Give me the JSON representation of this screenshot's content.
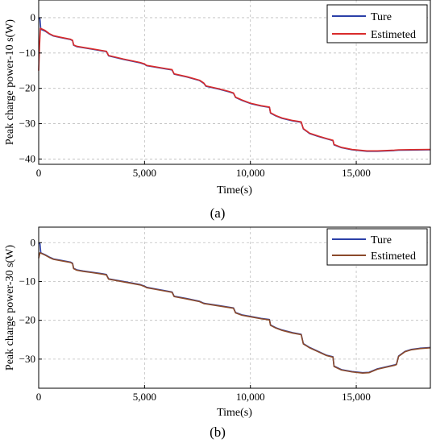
{
  "chart_data": [
    {
      "type": "line",
      "panel_label": "(a)",
      "xlabel": "Time(s)",
      "ylabel": "Peak charge power-10 s(W)",
      "xlim": [
        0,
        18500
      ],
      "ylim": [
        -41.5,
        5
      ],
      "xticks": [
        0,
        5000,
        10000,
        15000
      ],
      "xtick_labels": [
        "0",
        "5,000",
        "10,000",
        "15,000"
      ],
      "yticks": [
        0,
        -10,
        -20,
        -30,
        -40
      ],
      "ytick_labels": [
        "0",
        "−10",
        "−20",
        "−30",
        "−40"
      ],
      "grid": true,
      "legend_position": "top-right",
      "series": [
        {
          "name": "Ture",
          "color": "#2b3fa8",
          "points": [
            [
              0,
              0
            ],
            [
              60,
              -0.4
            ],
            [
              100,
              -3.3
            ],
            [
              300,
              -3.8
            ],
            [
              500,
              -4.6
            ],
            [
              700,
              -5.2
            ],
            [
              1000,
              -5.6
            ],
            [
              1500,
              -6.2
            ],
            [
              1600,
              -6.5
            ],
            [
              1650,
              -7.8
            ],
            [
              1800,
              -8.2
            ],
            [
              2100,
              -8.5
            ],
            [
              2500,
              -8.9
            ],
            [
              3000,
              -9.4
            ],
            [
              3200,
              -9.6
            ],
            [
              3300,
              -10.8
            ],
            [
              4000,
              -11.8
            ],
            [
              4800,
              -12.8
            ],
            [
              5000,
              -13.2
            ],
            [
              5100,
              -13.6
            ],
            [
              5500,
              -14.0
            ],
            [
              6000,
              -14.5
            ],
            [
              6300,
              -14.8
            ],
            [
              6400,
              -16.0
            ],
            [
              7000,
              -16.8
            ],
            [
              7600,
              -17.8
            ],
            [
              7800,
              -18.6
            ],
            [
              7900,
              -19.4
            ],
            [
              8500,
              -20.2
            ],
            [
              9000,
              -21.0
            ],
            [
              9200,
              -21.4
            ],
            [
              9300,
              -22.6
            ],
            [
              9600,
              -23.4
            ],
            [
              10000,
              -24.3
            ],
            [
              10500,
              -25.0
            ],
            [
              10900,
              -25.4
            ],
            [
              10950,
              -27.0
            ],
            [
              11200,
              -27.8
            ],
            [
              11500,
              -28.5
            ],
            [
              12000,
              -29.2
            ],
            [
              12400,
              -29.6
            ],
            [
              12500,
              -31.5
            ],
            [
              12800,
              -32.8
            ],
            [
              13200,
              -33.6
            ],
            [
              13600,
              -34.3
            ],
            [
              13900,
              -34.8
            ],
            [
              13950,
              -36.0
            ],
            [
              14300,
              -36.8
            ],
            [
              14800,
              -37.4
            ],
            [
              15500,
              -37.8
            ],
            [
              16000,
              -37.8
            ],
            [
              16800,
              -37.6
            ],
            [
              17000,
              -37.5
            ],
            [
              18500,
              -37.4
            ]
          ]
        },
        {
          "name": "Estimeted",
          "color": "#d92b2b",
          "points": [
            [
              0,
              -15.0
            ],
            [
              40,
              -8.0
            ],
            [
              80,
              -3.0
            ],
            [
              300,
              -3.6
            ],
            [
              500,
              -4.5
            ],
            [
              700,
              -5.1
            ],
            [
              1000,
              -5.5
            ],
            [
              1500,
              -6.1
            ],
            [
              1600,
              -6.4
            ],
            [
              1650,
              -7.7
            ],
            [
              1800,
              -8.1
            ],
            [
              2100,
              -8.4
            ],
            [
              2500,
              -8.8
            ],
            [
              3000,
              -9.3
            ],
            [
              3200,
              -9.5
            ],
            [
              3300,
              -10.7
            ],
            [
              4000,
              -11.7
            ],
            [
              4800,
              -12.7
            ],
            [
              5000,
              -13.1
            ],
            [
              5100,
              -13.5
            ],
            [
              5500,
              -13.9
            ],
            [
              6000,
              -14.4
            ],
            [
              6300,
              -14.7
            ],
            [
              6400,
              -15.9
            ],
            [
              7000,
              -16.7
            ],
            [
              7600,
              -17.7
            ],
            [
              7800,
              -18.5
            ],
            [
              7900,
              -19.3
            ],
            [
              8500,
              -20.1
            ],
            [
              9000,
              -20.9
            ],
            [
              9200,
              -21.3
            ],
            [
              9300,
              -22.5
            ],
            [
              9600,
              -23.3
            ],
            [
              10000,
              -24.2
            ],
            [
              10500,
              -24.9
            ],
            [
              10900,
              -25.3
            ],
            [
              10950,
              -26.9
            ],
            [
              11200,
              -27.7
            ],
            [
              11500,
              -28.4
            ],
            [
              12000,
              -29.1
            ],
            [
              12400,
              -29.5
            ],
            [
              12500,
              -31.4
            ],
            [
              12800,
              -32.7
            ],
            [
              13200,
              -33.5
            ],
            [
              13600,
              -34.2
            ],
            [
              13900,
              -34.7
            ],
            [
              13950,
              -35.9
            ],
            [
              14300,
              -36.7
            ],
            [
              14800,
              -37.3
            ],
            [
              15500,
              -37.7
            ],
            [
              16000,
              -37.7
            ],
            [
              16800,
              -37.5
            ],
            [
              17000,
              -37.4
            ],
            [
              18500,
              -37.3
            ]
          ]
        }
      ]
    },
    {
      "type": "line",
      "panel_label": "(b)",
      "xlabel": "Time(s)",
      "ylabel": "Peak charge power-30 s(W)",
      "xlim": [
        0,
        18500
      ],
      "ylim": [
        -37.5,
        4
      ],
      "xticks": [
        0,
        5000,
        10000,
        15000
      ],
      "xtick_labels": [
        "0",
        "5,000",
        "10,000",
        "15,000"
      ],
      "yticks": [
        0,
        -10,
        -20,
        -30
      ],
      "ytick_labels": [
        "0",
        "−10",
        "−20",
        "−30"
      ],
      "grid": true,
      "legend_position": "top-right",
      "series": [
        {
          "name": "Ture",
          "color": "#2b3fa8",
          "points": [
            [
              0,
              0
            ],
            [
              60,
              -0.3
            ],
            [
              100,
              -2.6
            ],
            [
              300,
              -3.1
            ],
            [
              500,
              -3.7
            ],
            [
              700,
              -4.2
            ],
            [
              1000,
              -4.5
            ],
            [
              1500,
              -5.0
            ],
            [
              1600,
              -5.3
            ],
            [
              1650,
              -6.6
            ],
            [
              1800,
              -7.0
            ],
            [
              2100,
              -7.3
            ],
            [
              2500,
              -7.6
            ],
            [
              3000,
              -8.0
            ],
            [
              3200,
              -8.2
            ],
            [
              3300,
              -9.3
            ],
            [
              4000,
              -10.0
            ],
            [
              4800,
              -10.8
            ],
            [
              5000,
              -11.2
            ],
            [
              5100,
              -11.5
            ],
            [
              5500,
              -11.9
            ],
            [
              6000,
              -12.4
            ],
            [
              6300,
              -12.7
            ],
            [
              6400,
              -13.8
            ],
            [
              7000,
              -14.4
            ],
            [
              7600,
              -15.1
            ],
            [
              7800,
              -15.6
            ],
            [
              8500,
              -16.2
            ],
            [
              9200,
              -16.8
            ],
            [
              9300,
              -18.0
            ],
            [
              9600,
              -18.6
            ],
            [
              10000,
              -19.0
            ],
            [
              10500,
              -19.5
            ],
            [
              10900,
              -19.8
            ],
            [
              10950,
              -21.2
            ],
            [
              11200,
              -21.9
            ],
            [
              11500,
              -22.5
            ],
            [
              12000,
              -23.2
            ],
            [
              12400,
              -23.6
            ],
            [
              12500,
              -26.0
            ],
            [
              12800,
              -27.0
            ],
            [
              13200,
              -28.0
            ],
            [
              13600,
              -29.0
            ],
            [
              13900,
              -29.4
            ],
            [
              13950,
              -31.8
            ],
            [
              14300,
              -32.7
            ],
            [
              14800,
              -33.2
            ],
            [
              15300,
              -33.5
            ],
            [
              15600,
              -33.4
            ],
            [
              16000,
              -32.5
            ],
            [
              16400,
              -32.0
            ],
            [
              16800,
              -31.5
            ],
            [
              16900,
              -31.3
            ],
            [
              17000,
              -29.2
            ],
            [
              17300,
              -28.0
            ],
            [
              17600,
              -27.5
            ],
            [
              18000,
              -27.2
            ],
            [
              18500,
              -27.0
            ]
          ]
        },
        {
          "name": "Estimeted",
          "color": "#8b4a2b",
          "points": [
            [
              0,
              -4.0
            ],
            [
              60,
              -2.6
            ],
            [
              100,
              -2.7
            ],
            [
              300,
              -3.2
            ],
            [
              500,
              -3.8
            ],
            [
              700,
              -4.3
            ],
            [
              1000,
              -4.6
            ],
            [
              1500,
              -5.1
            ],
            [
              1600,
              -5.4
            ],
            [
              1650,
              -6.7
            ],
            [
              1800,
              -7.1
            ],
            [
              2100,
              -7.4
            ],
            [
              2500,
              -7.7
            ],
            [
              3000,
              -8.1
            ],
            [
              3200,
              -8.3
            ],
            [
              3300,
              -9.4
            ],
            [
              4000,
              -10.1
            ],
            [
              4800,
              -10.9
            ],
            [
              5000,
              -11.3
            ],
            [
              5100,
              -11.6
            ],
            [
              5500,
              -12.0
            ],
            [
              6000,
              -12.5
            ],
            [
              6300,
              -12.8
            ],
            [
              6400,
              -13.9
            ],
            [
              7000,
              -14.5
            ],
            [
              7600,
              -15.2
            ],
            [
              7800,
              -15.7
            ],
            [
              8500,
              -16.3
            ],
            [
              9200,
              -16.9
            ],
            [
              9300,
              -18.1
            ],
            [
              9600,
              -18.7
            ],
            [
              10000,
              -19.1
            ],
            [
              10500,
              -19.6
            ],
            [
              10900,
              -19.9
            ],
            [
              10950,
              -21.3
            ],
            [
              11200,
              -22.0
            ],
            [
              11500,
              -22.6
            ],
            [
              12000,
              -23.3
            ],
            [
              12400,
              -23.7
            ],
            [
              12500,
              -26.1
            ],
            [
              12800,
              -27.1
            ],
            [
              13200,
              -28.1
            ],
            [
              13600,
              -29.1
            ],
            [
              13900,
              -29.5
            ],
            [
              13950,
              -31.9
            ],
            [
              14300,
              -32.8
            ],
            [
              14800,
              -33.3
            ],
            [
              15300,
              -33.6
            ],
            [
              15600,
              -33.5
            ],
            [
              16000,
              -32.6
            ],
            [
              16400,
              -32.1
            ],
            [
              16800,
              -31.6
            ],
            [
              16900,
              -31.4
            ],
            [
              17000,
              -29.3
            ],
            [
              17300,
              -28.1
            ],
            [
              17600,
              -27.6
            ],
            [
              18000,
              -27.3
            ],
            [
              18500,
              -27.1
            ]
          ]
        }
      ]
    }
  ]
}
